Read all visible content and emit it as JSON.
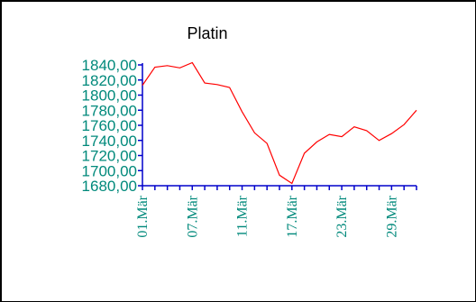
{
  "chart_data": {
    "type": "line",
    "title": "Platin",
    "xlabel": "",
    "ylabel": "",
    "ylim": [
      1680,
      1840
    ],
    "y_ticks": [
      "1840,00",
      "1820,00",
      "1800,00",
      "1780,00",
      "1760,00",
      "1740,00",
      "1720,00",
      "1700,00",
      "1680,00"
    ],
    "x_ticks": [
      "01.Mär",
      "07.Mär",
      "11.Mär",
      "17.Mär",
      "23.Mär",
      "29.Mär"
    ],
    "grid": false,
    "colors": {
      "line": "#ff0000",
      "axis": "#0000cc",
      "tick_text": "#00897b"
    },
    "series": [
      {
        "values": [
          1813,
          1837,
          1839,
          1836,
          1843,
          1816,
          1814,
          1810,
          1778,
          1750,
          1736,
          1694,
          1683,
          1723,
          1738,
          1748,
          1745,
          1758,
          1753,
          1740,
          1749,
          1761,
          1780
        ]
      }
    ]
  }
}
